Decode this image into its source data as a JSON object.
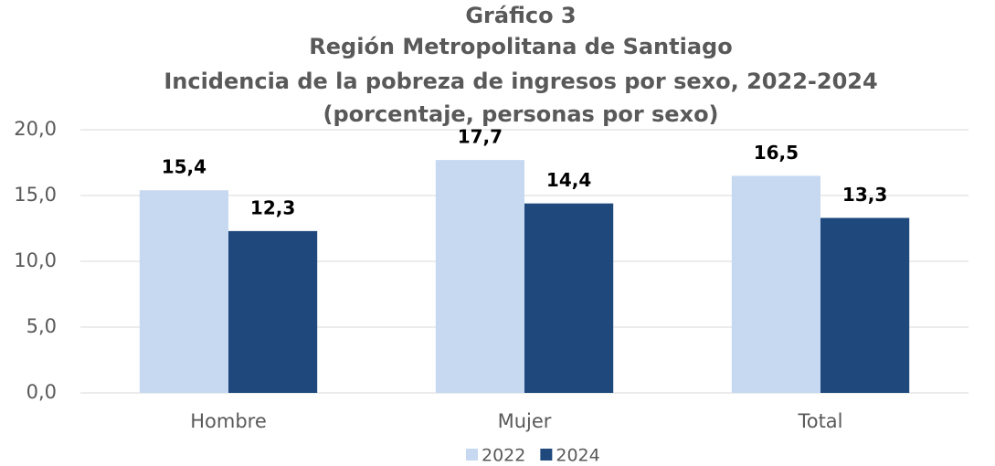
{
  "chart_data": {
    "type": "bar",
    "title": [
      "Gráfico 3",
      "Región Metropolitana de Santiago",
      "Incidencia de la pobreza de ingresos por sexo, 2022-2024",
      "(porcentaje, personas por sexo)"
    ],
    "categories": [
      "Hombre",
      "Mujer",
      "Total"
    ],
    "series": [
      {
        "name": "2022",
        "color": "#c6d9f1",
        "values": [
          15.4,
          17.7,
          16.5
        ],
        "value_labels": [
          "15,4",
          "17,7",
          "16,5"
        ]
      },
      {
        "name": "2024",
        "color": "#1f497d",
        "values": [
          12.3,
          14.4,
          13.3
        ],
        "value_labels": [
          "12,3",
          "14,4",
          "13,3"
        ]
      }
    ],
    "ylim": [
      0,
      20
    ],
    "yticks": [
      {
        "value": 0,
        "label": "0,0"
      },
      {
        "value": 5,
        "label": "5,0"
      },
      {
        "value": 10,
        "label": "10,0"
      },
      {
        "value": 15,
        "label": "15,0"
      },
      {
        "value": 20,
        "label": "20,0"
      }
    ],
    "grid": true,
    "legend": "bottom"
  }
}
